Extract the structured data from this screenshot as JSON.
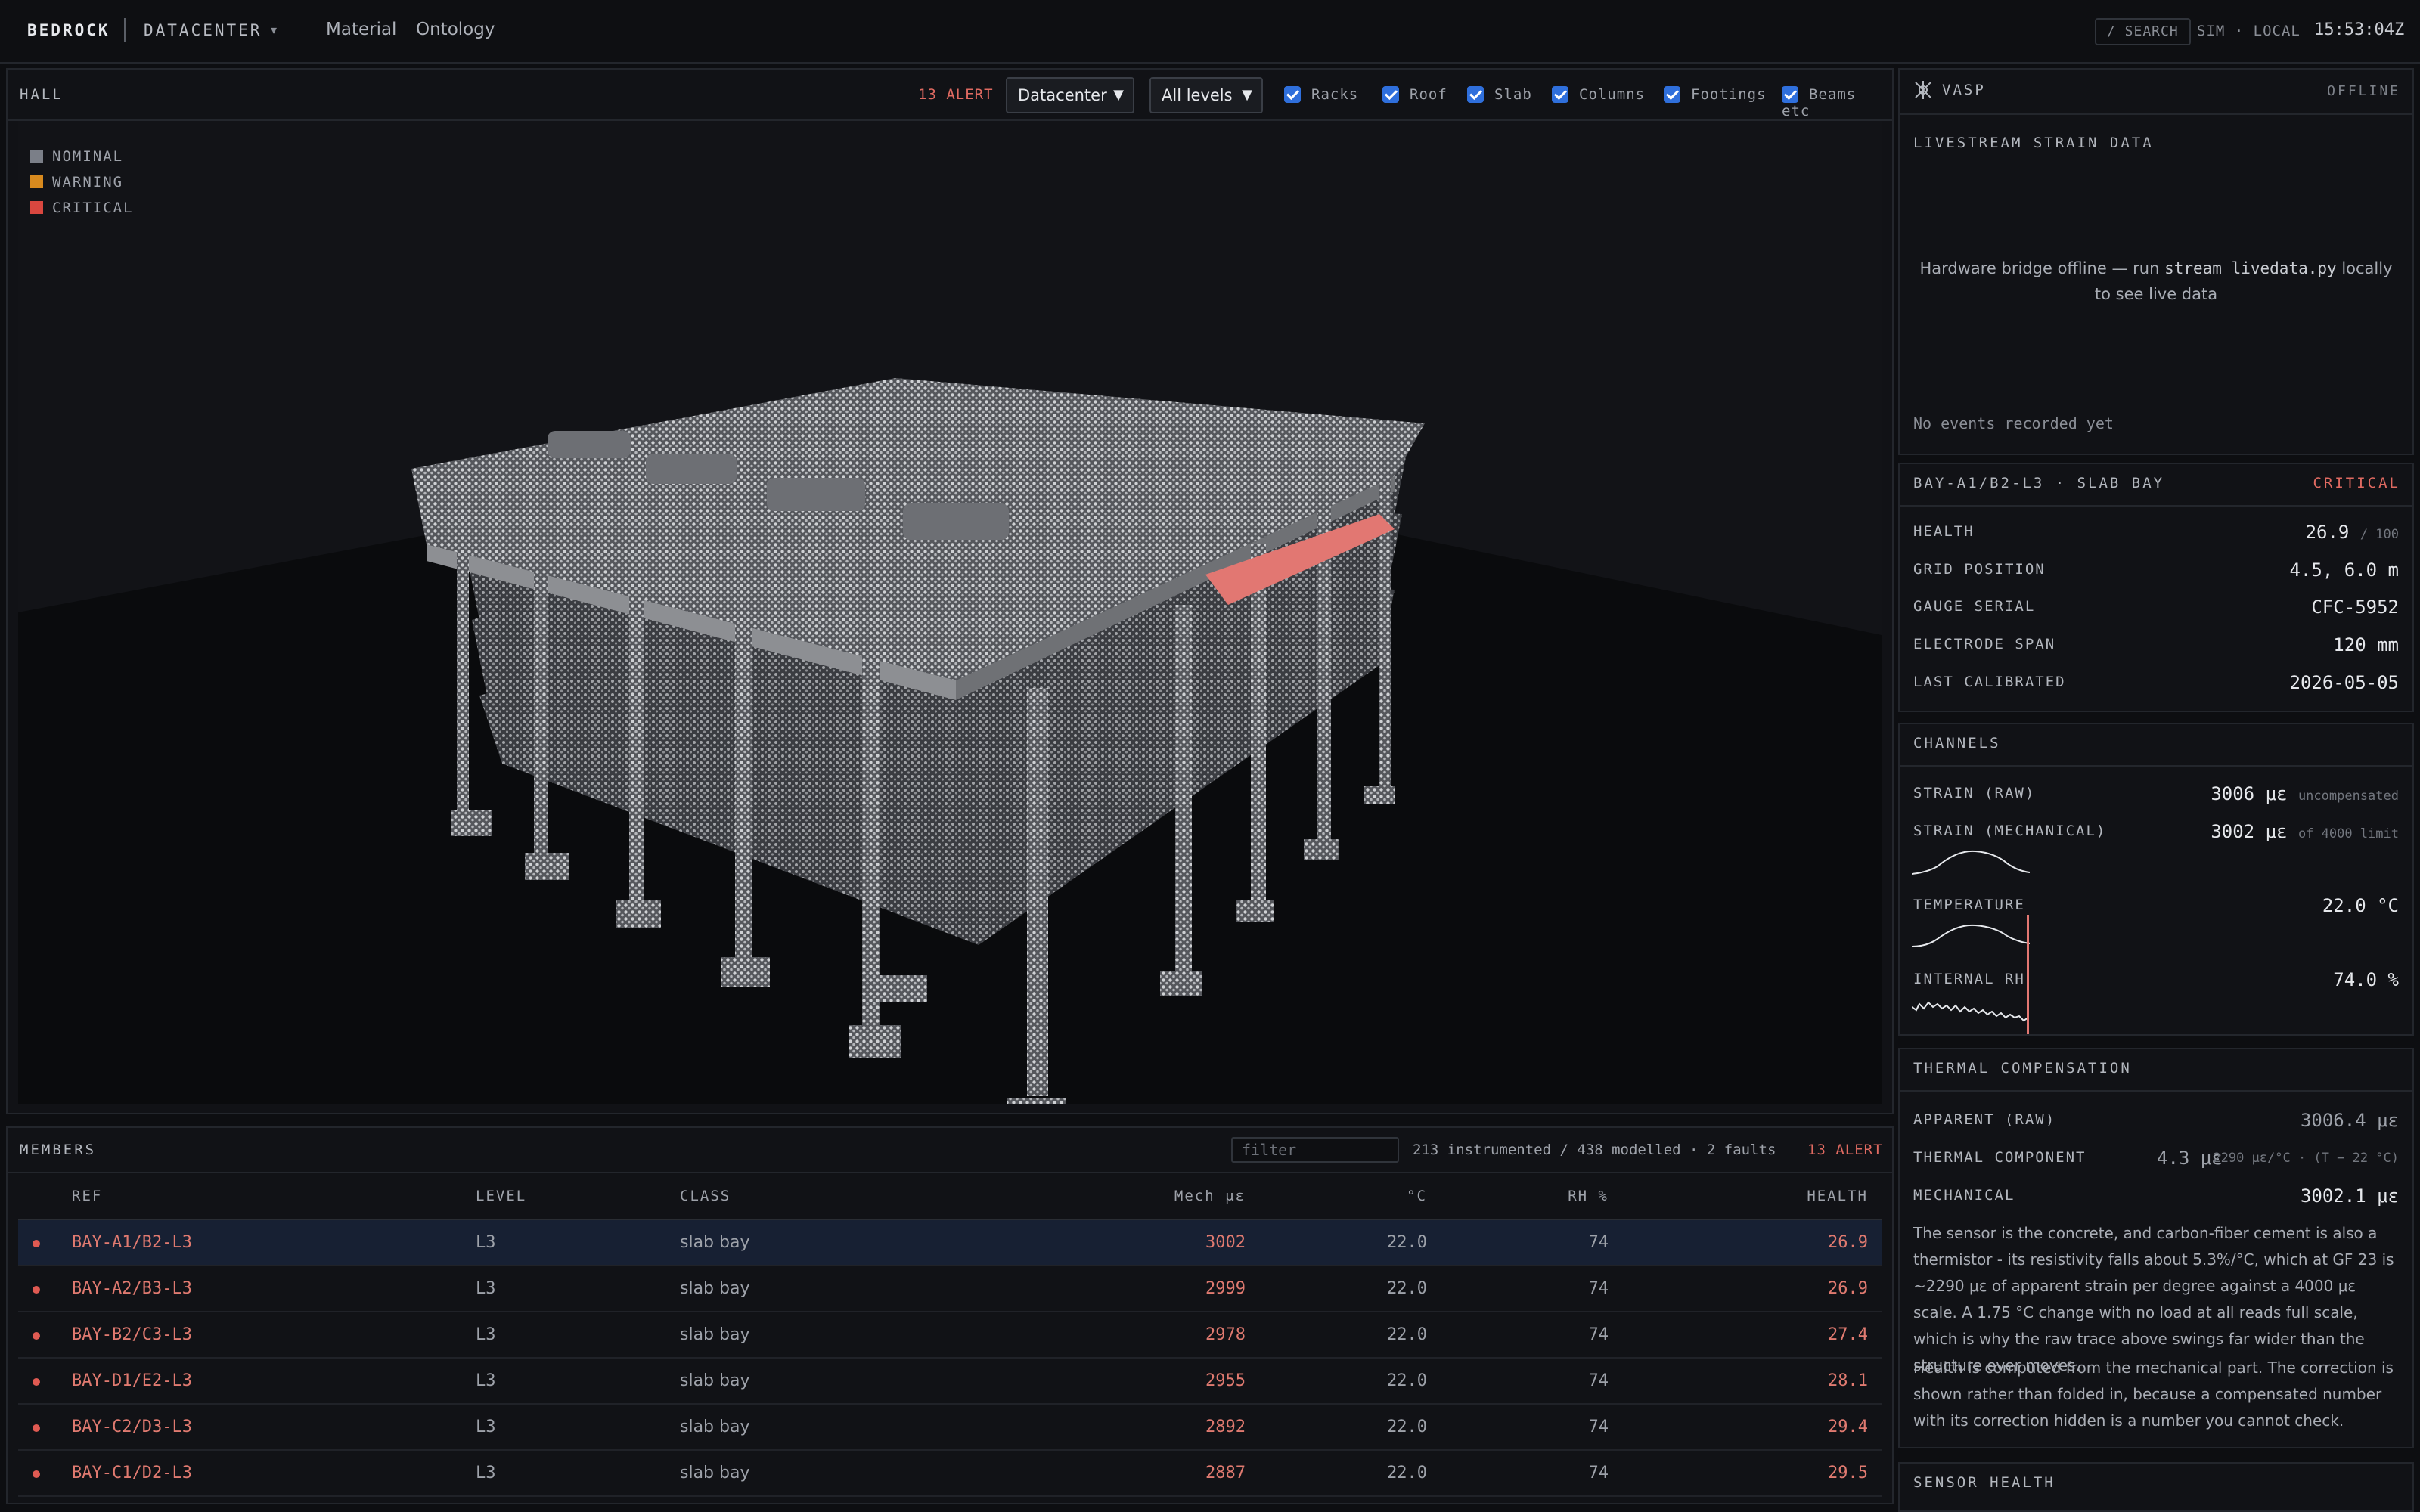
{
  "topbar": {
    "brand": "BEDROCK",
    "workspace": "DATACENTER",
    "workspace_caret": "▾",
    "nav": [
      "Material",
      "Ontology"
    ],
    "search_label": "/ SEARCH",
    "mode": "SIM · LOCAL",
    "clock": "15:53:04Z"
  },
  "hall": {
    "title": "HALL",
    "alert": "13 ALERT",
    "site_select": "Datacenter",
    "level_select": "All levels",
    "layers": [
      "Racks",
      "Roof",
      "Slab",
      "Columns",
      "Footings",
      "Beams etc"
    ],
    "legend": [
      {
        "label": "NOMINAL",
        "color": "#7b7f88"
      },
      {
        "label": "WARNING",
        "color": "#d88a1e"
      },
      {
        "label": "CRITICAL",
        "color": "#d9473f"
      }
    ]
  },
  "members": {
    "title": "MEMBERS",
    "filter_placeholder": "filter",
    "stats": "213 instrumented / 438 modelled · 2 faults",
    "alert": "13 ALERT",
    "columns": [
      "REF",
      "LEVEL",
      "CLASS",
      "Mech με",
      "°C",
      "RH %",
      "HEALTH"
    ],
    "rows": [
      {
        "ref": "BAY-A1/B2-L3",
        "level": "L3",
        "class": "slab bay",
        "mech": "3002",
        "temp": "22.0",
        "rh": "74",
        "health": "26.9"
      },
      {
        "ref": "BAY-A2/B3-L3",
        "level": "L3",
        "class": "slab bay",
        "mech": "2999",
        "temp": "22.0",
        "rh": "74",
        "health": "26.9"
      },
      {
        "ref": "BAY-B2/C3-L3",
        "level": "L3",
        "class": "slab bay",
        "mech": "2978",
        "temp": "22.0",
        "rh": "74",
        "health": "27.4"
      },
      {
        "ref": "BAY-D1/E2-L3",
        "level": "L3",
        "class": "slab bay",
        "mech": "2955",
        "temp": "22.0",
        "rh": "74",
        "health": "28.1"
      },
      {
        "ref": "BAY-C2/D3-L3",
        "level": "L3",
        "class": "slab bay",
        "mech": "2892",
        "temp": "22.0",
        "rh": "74",
        "health": "29.4"
      },
      {
        "ref": "BAY-C1/D2-L3",
        "level": "L3",
        "class": "slab bay",
        "mech": "2887",
        "temp": "22.0",
        "rh": "74",
        "health": "29.5"
      }
    ]
  },
  "vasp": {
    "title": "VASP",
    "status": "OFFLINE",
    "section": "LIVESTREAM STRAIN DATA",
    "msg_prefix": "Hardware bridge offline — run ",
    "msg_code": "stream_livedata.py",
    "msg_suffix": " locally",
    "msg_line2": "to see live data",
    "events": "No events recorded yet"
  },
  "detail": {
    "title": "BAY-A1/B2-L3 · SLAB BAY",
    "status": "CRITICAL",
    "health_label": "HEALTH",
    "health_value": "26.9",
    "health_suffix": "/ 100",
    "grid_label": "GRID POSITION",
    "grid_value": "4.5, 6.0 m",
    "serial_label": "GAUGE SERIAL",
    "serial_value": "CFC-5952",
    "span_label": "ELECTRODE SPAN",
    "span_value": "120 mm",
    "cal_label": "LAST CALIBRATED",
    "cal_value": "2026-05-05"
  },
  "channels": {
    "title": "CHANNELS",
    "raw_label": "STRAIN (RAW)",
    "raw_value": "3006 με",
    "raw_note": "uncompensated",
    "mech_label": "STRAIN (MECHANICAL)",
    "mech_value": "3002 με",
    "mech_note": "of 4000 limit",
    "temp_label": "TEMPERATURE",
    "temp_value": "22.0 °C",
    "rh_label": "INTERNAL RH",
    "rh_value": "74.0 %"
  },
  "thermal": {
    "title": "THERMAL COMPENSATION",
    "apparent_label": "APPARENT (RAW)",
    "apparent_value": "3006.4 με",
    "component_label": "THERMAL COMPONENT",
    "component_value": "4.3 με",
    "component_note": "2290 με/°C · (T − 22 °C)",
    "mech_label": "MECHANICAL",
    "mech_value": "3002.1 με",
    "para1": "The sensor is the concrete, and carbon-fiber cement is also a thermistor - its resistivity falls about 5.3%/°C, which at GF 23 is ~2290 με of apparent strain per degree against a 4000 με scale. A 1.75 °C change with no load at all reads full scale, which is why the raw trace above swings far wider than the structure ever moves.",
    "para2": "Health is computed from the mechanical part. The correction is shown rather than folded in, because a compensated number with its correction hidden is a number you cannot check."
  },
  "sensor_health": {
    "title": "SENSOR HEALTH"
  }
}
